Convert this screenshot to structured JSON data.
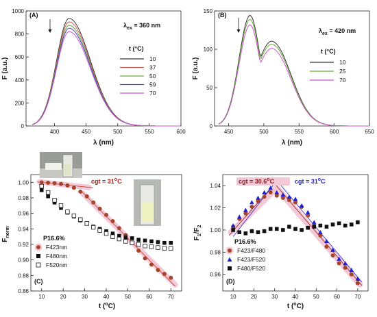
{
  "chart_data": [
    {
      "type": "line",
      "panel_label": "(A)",
      "xlabel": "λ (nm)",
      "ylabel": "F (a.u.)",
      "xlim": [
        355,
        600
      ],
      "ylim": [
        0,
        1000
      ],
      "xticks": [
        400,
        450,
        500,
        550,
        600
      ],
      "yticks": [
        0,
        200,
        400,
        600,
        800,
        1000
      ],
      "excitation_label": "λex = 360 nm",
      "legend_title": "t (°C)",
      "legend_position": "right",
      "arrow": "downward at 395 nm",
      "series": [
        {
          "name": "10",
          "color": "#333333",
          "peak_x": 423,
          "peak_y": 935
        },
        {
          "name": "37",
          "color": "#cc5555",
          "peak_x": 423,
          "peak_y": 905
        },
        {
          "name": "50",
          "color": "#66aa33",
          "peak_x": 423,
          "peak_y": 875
        },
        {
          "name": "59",
          "color": "#4444cc",
          "peak_x": 423,
          "peak_y": 850
        },
        {
          "name": "70",
          "color": "#cc55cc",
          "peak_x": 423,
          "peak_y": 820
        }
      ]
    },
    {
      "type": "line",
      "panel_label": "(B)",
      "xlabel": "λ (nm)",
      "ylabel": "F (a.u.)",
      "xlim": [
        430,
        650
      ],
      "ylim": [
        0,
        150
      ],
      "xticks": [
        450,
        500,
        550,
        600,
        650
      ],
      "yticks": [
        0,
        50,
        100,
        150
      ],
      "excitation_label": "λex = 420 nm",
      "legend_title": "t (°C)",
      "legend_position": "right",
      "arrow": "downward at 455 nm",
      "series": [
        {
          "name": "10",
          "color": "#333333",
          "peak_x": 480,
          "peak_y": 140
        },
        {
          "name": "25",
          "color": "#66aa33",
          "peak_x": 480,
          "peak_y": 135
        },
        {
          "name": "70",
          "color": "#cc55cc",
          "peak_x": 480,
          "peak_y": 128
        }
      ]
    },
    {
      "type": "scatter",
      "panel_label": "(C)",
      "xlabel": "t (°C)",
      "ylabel": "Fnorm",
      "xlim": [
        5,
        75
      ],
      "ylim": [
        0.86,
        1.01
      ],
      "xticks": [
        10,
        20,
        30,
        40,
        50,
        60,
        70
      ],
      "yticks": [
        0.86,
        0.88,
        0.9,
        0.92,
        0.94,
        0.96,
        0.98,
        1.0
      ],
      "annotation": "cgt = 31°C",
      "legend_title": "P16.6%",
      "legend_position": "bottom-left",
      "x": [
        10,
        13,
        16,
        19,
        22,
        25,
        28,
        31,
        34,
        37,
        40,
        43,
        46,
        49,
        52,
        55,
        58,
        61,
        64,
        67,
        70
      ],
      "series": [
        {
          "name": "F423nm",
          "marker": "circle",
          "color": "#a5452a",
          "values": [
            1.0,
            0.9995,
            0.999,
            0.998,
            0.996,
            0.993,
            0.988,
            0.982,
            0.974,
            0.966,
            0.958,
            0.95,
            0.941,
            0.932,
            0.922,
            0.912,
            0.902,
            0.894,
            0.887,
            0.882,
            0.877
          ]
        },
        {
          "name": "F480nm",
          "marker": "square-filled",
          "color": "#111111",
          "values": [
            0.99,
            0.982,
            0.974,
            0.967,
            0.961,
            0.956,
            0.951,
            0.947,
            0.943,
            0.94,
            0.937,
            0.934,
            0.931,
            0.929,
            0.928,
            0.926,
            0.925,
            0.924,
            0.923,
            0.922,
            0.922
          ]
        },
        {
          "name": "F520nm",
          "marker": "square-open",
          "color": "#111111",
          "values": [
            0.995,
            0.987,
            0.977,
            0.97,
            0.962,
            0.957,
            0.952,
            0.947,
            0.942,
            0.938,
            0.934,
            0.93,
            0.927,
            0.924,
            0.922,
            0.92,
            0.918,
            0.917,
            0.916,
            0.915,
            0.915
          ]
        }
      ]
    },
    {
      "type": "scatter",
      "panel_label": "(D)",
      "xlabel": "t (°C)",
      "ylabel": "F1/F2",
      "xlim": [
        5,
        75
      ],
      "ylim": [
        0.945,
        1.05
      ],
      "xticks": [
        10,
        20,
        30,
        40,
        50,
        60,
        70
      ],
      "yticks": [
        0.96,
        0.98,
        1.0,
        1.02,
        1.04
      ],
      "annotation_1": "cgt = 30.6°C",
      "annotation_2": "cgt = 31°C",
      "legend_title": "P16.6%",
      "legend_position": "bottom-left",
      "x": [
        10,
        13,
        16,
        19,
        22,
        25,
        28,
        31,
        34,
        37,
        40,
        43,
        46,
        49,
        52,
        55,
        58,
        61,
        64,
        67,
        70
      ],
      "series": [
        {
          "name": "F423/F480",
          "marker": "circle",
          "color": "#a5452a",
          "values": [
            1.003,
            1.01,
            1.015,
            1.021,
            1.026,
            1.03,
            1.034,
            1.031,
            1.029,
            1.027,
            1.025,
            1.021,
            1.013,
            1.004,
            0.995,
            0.985,
            0.977,
            0.97,
            0.966,
            0.96,
            0.952
          ]
        },
        {
          "name": "F423/F520",
          "marker": "triangle",
          "color": "#1f1fd0",
          "values": [
            1.004,
            1.012,
            1.018,
            1.025,
            1.029,
            1.034,
            1.038,
            1.034,
            1.032,
            1.03,
            1.028,
            1.022,
            1.016,
            1.007,
            0.998,
            0.99,
            0.982,
            0.974,
            0.97,
            0.964,
            0.956
          ]
        },
        {
          "name": "F480/F520",
          "marker": "square-filled",
          "color": "#111111",
          "values": [
            1.0,
            0.998,
            0.997,
            0.999,
            0.998,
            0.999,
            1.001,
            1.001,
            1.0,
            1.003,
            1.001,
            1.0,
            1.002,
            1.003,
            1.004,
            1.003,
            1.005,
            1.006,
            1.004,
            1.005,
            1.007
          ]
        }
      ]
    }
  ]
}
